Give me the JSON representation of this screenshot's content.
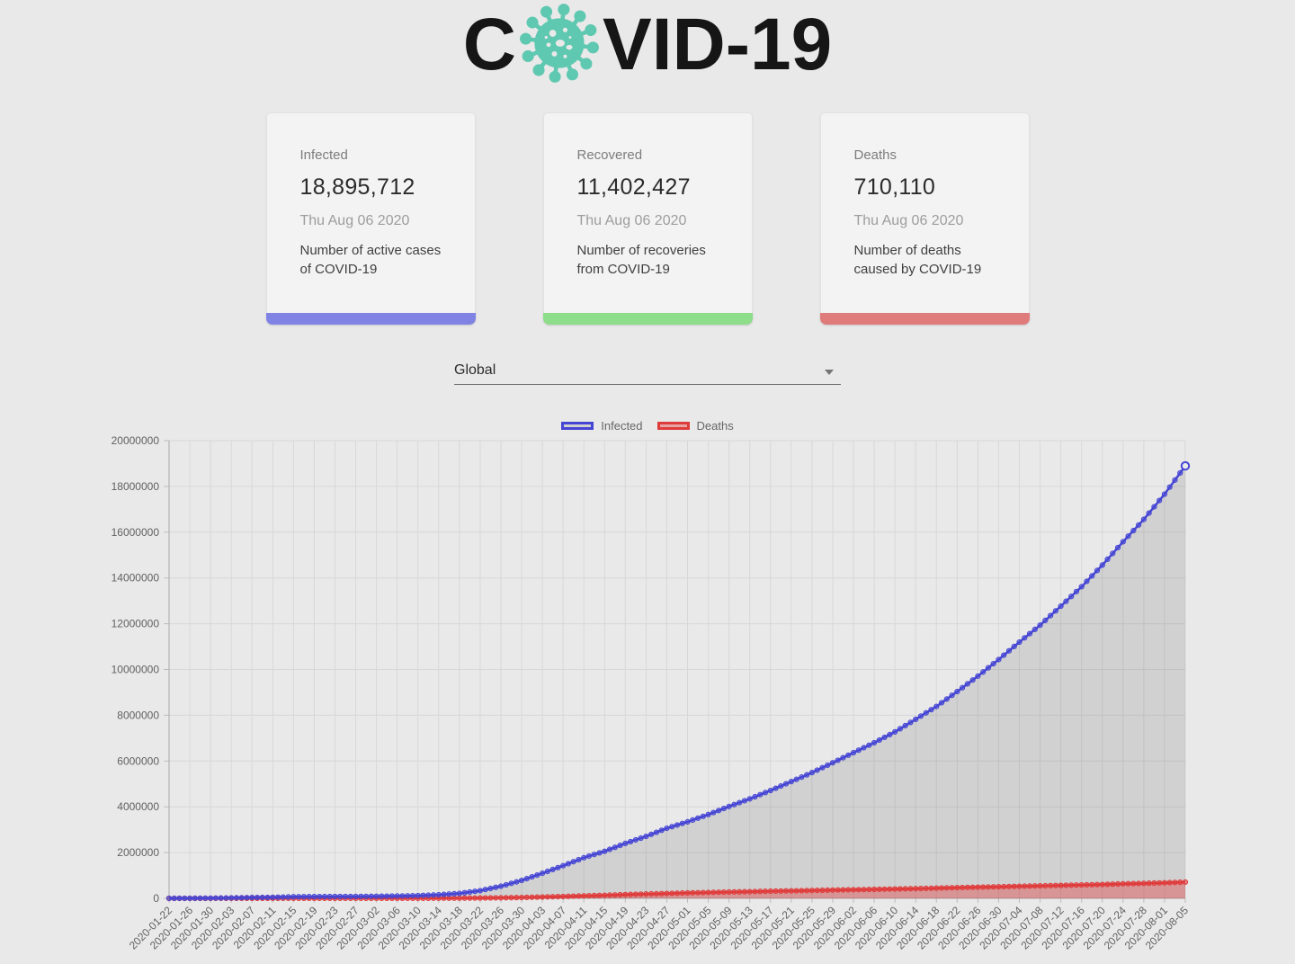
{
  "page_bg": "#e9e9e9",
  "header": {
    "title_prefix": "C",
    "title_suffix": "VID-19",
    "title_color": "#161616",
    "virus_icon_color": "#5fc8b0"
  },
  "cards": [
    {
      "label": "Infected",
      "value": "18,895,712",
      "date": "Thu Aug 06 2020",
      "description_lines": [
        "Number of active cases",
        "of COVID-19"
      ],
      "bar_color": "#8183e4"
    },
    {
      "label": "Recovered",
      "value": "11,402,427",
      "date": "Thu Aug 06 2020",
      "description_lines": [
        "Number of recoveries",
        "from COVID-19"
      ],
      "bar_color": "#8ddd8a"
    },
    {
      "label": "Deaths",
      "value": "710,110",
      "date": "Thu Aug 06 2020",
      "description_lines": [
        "Number of deaths",
        "caused by COVID-19"
      ],
      "bar_color": "#e07b7b"
    }
  ],
  "country_select": {
    "value": "Global"
  },
  "chart_data": {
    "type": "line",
    "title": "",
    "xlabel": "",
    "ylabel": "",
    "grid": true,
    "legend_position": "top",
    "ylim": [
      0,
      20000000
    ],
    "yticks": [
      0,
      2000000,
      4000000,
      6000000,
      8000000,
      10000000,
      12000000,
      14000000,
      16000000,
      18000000,
      20000000
    ],
    "x": [
      "2020-01-22",
      "2020-01-26",
      "2020-01-30",
      "2020-02-03",
      "2020-02-07",
      "2020-02-11",
      "2020-02-15",
      "2020-02-19",
      "2020-02-23",
      "2020-02-27",
      "2020-03-02",
      "2020-03-06",
      "2020-03-10",
      "2020-03-14",
      "2020-03-18",
      "2020-03-22",
      "2020-03-26",
      "2020-03-30",
      "2020-04-03",
      "2020-04-07",
      "2020-04-11",
      "2020-04-15",
      "2020-04-19",
      "2020-04-23",
      "2020-04-27",
      "2020-05-01",
      "2020-05-05",
      "2020-05-09",
      "2020-05-13",
      "2020-05-17",
      "2020-05-21",
      "2020-05-25",
      "2020-05-29",
      "2020-06-02",
      "2020-06-06",
      "2020-06-10",
      "2020-06-14",
      "2020-06-18",
      "2020-06-22",
      "2020-06-26",
      "2020-06-30",
      "2020-07-04",
      "2020-07-08",
      "2020-07-12",
      "2020-07-16",
      "2020-07-20",
      "2020-07-24",
      "2020-07-28",
      "2020-08-01",
      "2020-08-05"
    ],
    "series": [
      {
        "name": "Infected",
        "color": "#4545d4",
        "marker_fill": "rgba(69,69,212,0.5)",
        "area_fill": "rgba(0,0,0,0.10)",
        "values": [
          555,
          2118,
          8234,
          19881,
          34886,
          45171,
          69030,
          75639,
          78985,
          82756,
          90306,
          101801,
          118582,
          156094,
          214910,
          336953,
          529591,
          782365,
          1095917,
          1426096,
          1777517,
          2056054,
          2401378,
          2708885,
          3062557,
          3343777,
          3662691,
          4013728,
          4347015,
          4713620,
          5102424,
          5495061,
          5924562,
          6365173,
          6799713,
          7273958,
          7823289,
          8385440,
          9034001,
          9710653,
          10434835,
          11196648,
          11937382,
          12768307,
          13616593,
          14562550,
          15581562,
          16558289,
          17660523,
          18895712
        ]
      },
      {
        "name": "Deaths",
        "color": "#e03b3b",
        "marker_fill": "rgba(224,59,59,0.55)",
        "area_fill": "rgba(224,59,59,0.40)",
        "values": [
          17,
          56,
          171,
          426,
          719,
          1115,
          1666,
          2122,
          2469,
          2814,
          3085,
          3460,
          4262,
          5819,
          8733,
          14651,
          23970,
          37582,
          58787,
          81937,
          108503,
          134177,
          164938,
          190490,
          211537,
          238619,
          257239,
          276710,
          292893,
          313219,
          328115,
          344815,
          361549,
          377525,
          392802,
          408025,
          426350,
          446959,
          469587,
          489182,
          507779,
          528810,
          546805,
          564924,
          585727,
          606741,
          635234,
          655233,
          680894,
          710110
        ]
      }
    ]
  }
}
